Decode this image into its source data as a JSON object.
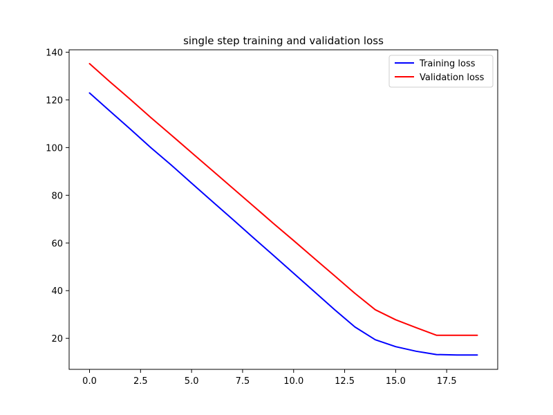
{
  "chart_data": {
    "type": "line",
    "title": "single step training and validation loss",
    "xlabel": "",
    "ylabel": "",
    "xlim": [
      -1.0,
      20.0
    ],
    "ylim": [
      7.0,
      141.0
    ],
    "xticks": [
      0.0,
      2.5,
      5.0,
      7.5,
      10.0,
      12.5,
      15.0,
      17.5
    ],
    "xtick_labels": [
      "0.0",
      "2.5",
      "5.0",
      "7.5",
      "10.0",
      "12.5",
      "15.0",
      "17.5"
    ],
    "yticks": [
      20,
      40,
      60,
      80,
      100,
      120,
      140
    ],
    "ytick_labels": [
      "20",
      "40",
      "60",
      "80",
      "100",
      "120",
      "140"
    ],
    "grid": false,
    "legend_position": "top-right",
    "x": [
      0,
      1,
      2,
      3,
      4,
      5,
      6,
      7,
      8,
      9,
      10,
      11,
      12,
      13,
      14,
      15,
      16,
      17,
      18,
      19
    ],
    "series": [
      {
        "name": "Training loss",
        "color": "#0000ff",
        "values": [
          122.9,
          115.3,
          107.7,
          100.0,
          92.7,
          85.1,
          77.5,
          70.0,
          62.4,
          54.9,
          47.3,
          39.7,
          32.1,
          24.8,
          19.4,
          16.5,
          14.6,
          13.2,
          13.0,
          13.0
        ]
      },
      {
        "name": "Validation loss",
        "color": "#ff0000",
        "values": [
          135.2,
          127.6,
          120.2,
          112.6,
          105.3,
          97.9,
          90.5,
          83.1,
          75.7,
          68.3,
          61.0,
          53.6,
          46.3,
          38.9,
          32.0,
          27.8,
          24.5,
          21.3,
          21.3,
          21.3
        ]
      }
    ]
  }
}
